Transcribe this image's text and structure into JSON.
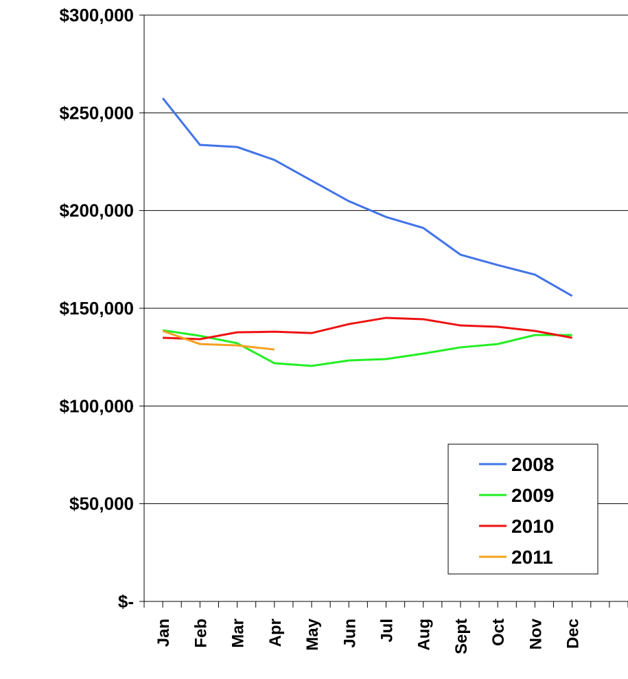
{
  "chart_data": {
    "type": "line",
    "categories": [
      "Jan",
      "Feb",
      "Mar",
      "Apr",
      "May",
      "Jun",
      "Jul",
      "Aug",
      "Sept",
      "Oct",
      "Nov",
      "Dec",
      null
    ],
    "series": [
      {
        "name": "2008",
        "color": "#4173e8",
        "values": [
          257500,
          233600,
          232500,
          225900,
          215300,
          204800,
          196700,
          191100,
          177400,
          172100,
          167200,
          156300,
          null
        ]
      },
      {
        "name": "2009",
        "color": "#22ee22",
        "values": [
          138700,
          135900,
          132100,
          121900,
          120500,
          123300,
          124000,
          126800,
          130000,
          131700,
          136300,
          136300,
          null
        ]
      },
      {
        "name": "2010",
        "color": "#ee1111",
        "values": [
          134900,
          134200,
          137700,
          138000,
          137300,
          141900,
          145100,
          144400,
          141200,
          140500,
          138400,
          134900,
          null
        ]
      },
      {
        "name": "2011",
        "color": "#f5a020",
        "values": [
          138400,
          131700,
          131000,
          128900,
          null,
          null,
          null,
          null,
          null,
          null,
          null,
          null,
          null
        ]
      }
    ],
    "ylim": [
      0,
      300000
    ],
    "yticks": [
      {
        "value": 0,
        "label": "$-"
      },
      {
        "value": 50000,
        "label": "$50,000"
      },
      {
        "value": 100000,
        "label": "$100,000"
      },
      {
        "value": 150000,
        "label": "$150,000"
      },
      {
        "value": 200000,
        "label": "$200,000"
      },
      {
        "value": 250000,
        "label": "$250,000"
      },
      {
        "value": 300000,
        "label": "$300,000"
      }
    ],
    "grid": true,
    "legend": "lower right"
  }
}
